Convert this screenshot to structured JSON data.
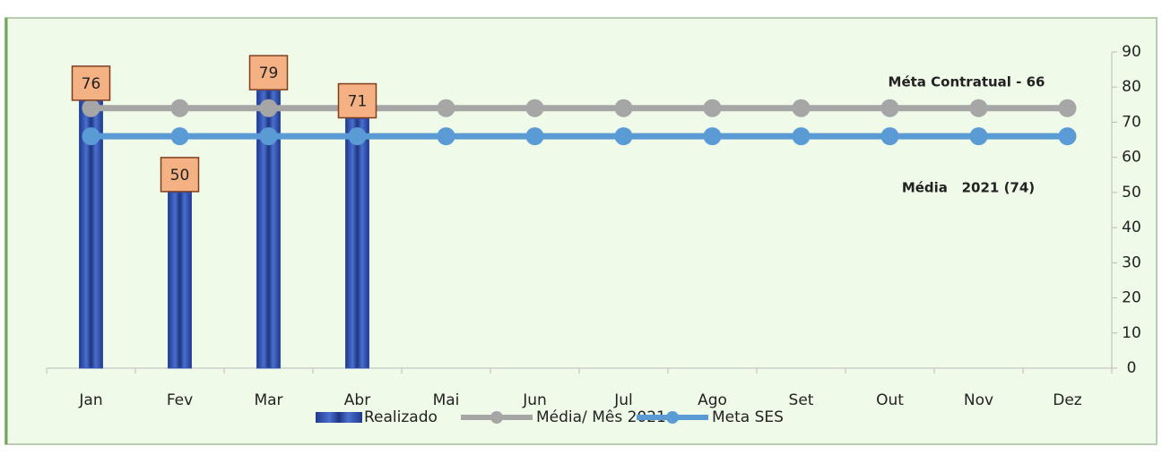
{
  "chart_data": {
    "type": "bar_line",
    "categories": [
      "Jan",
      "Fev",
      "Mar",
      "Abr",
      "Mai",
      "Jun",
      "Jul",
      "Ago",
      "Set",
      "Out",
      "Nov",
      "Dez"
    ],
    "series": [
      {
        "name": "Realizado",
        "type": "bar",
        "color": "#2f4fb0",
        "values": [
          76,
          50,
          79,
          71,
          null,
          null,
          null,
          null,
          null,
          null,
          null,
          null
        ]
      },
      {
        "name": "Média/ Mês 2021",
        "type": "line",
        "color": "#a6a6a6",
        "values": [
          74,
          74,
          74,
          74,
          74,
          74,
          74,
          74,
          74,
          74,
          74,
          74
        ]
      },
      {
        "name": "Meta SES",
        "type": "line",
        "color": "#5b9bd5",
        "values": [
          66,
          66,
          66,
          66,
          66,
          66,
          66,
          66,
          66,
          66,
          66,
          66
        ]
      }
    ],
    "annotations": [
      "Méta Contratual - 66",
      "Média   2021 (74)"
    ],
    "ylim": [
      0,
      90
    ],
    "yticks": [
      0,
      10,
      20,
      30,
      40,
      50,
      60,
      70,
      80,
      90
    ],
    "y_axis_side": "right"
  }
}
